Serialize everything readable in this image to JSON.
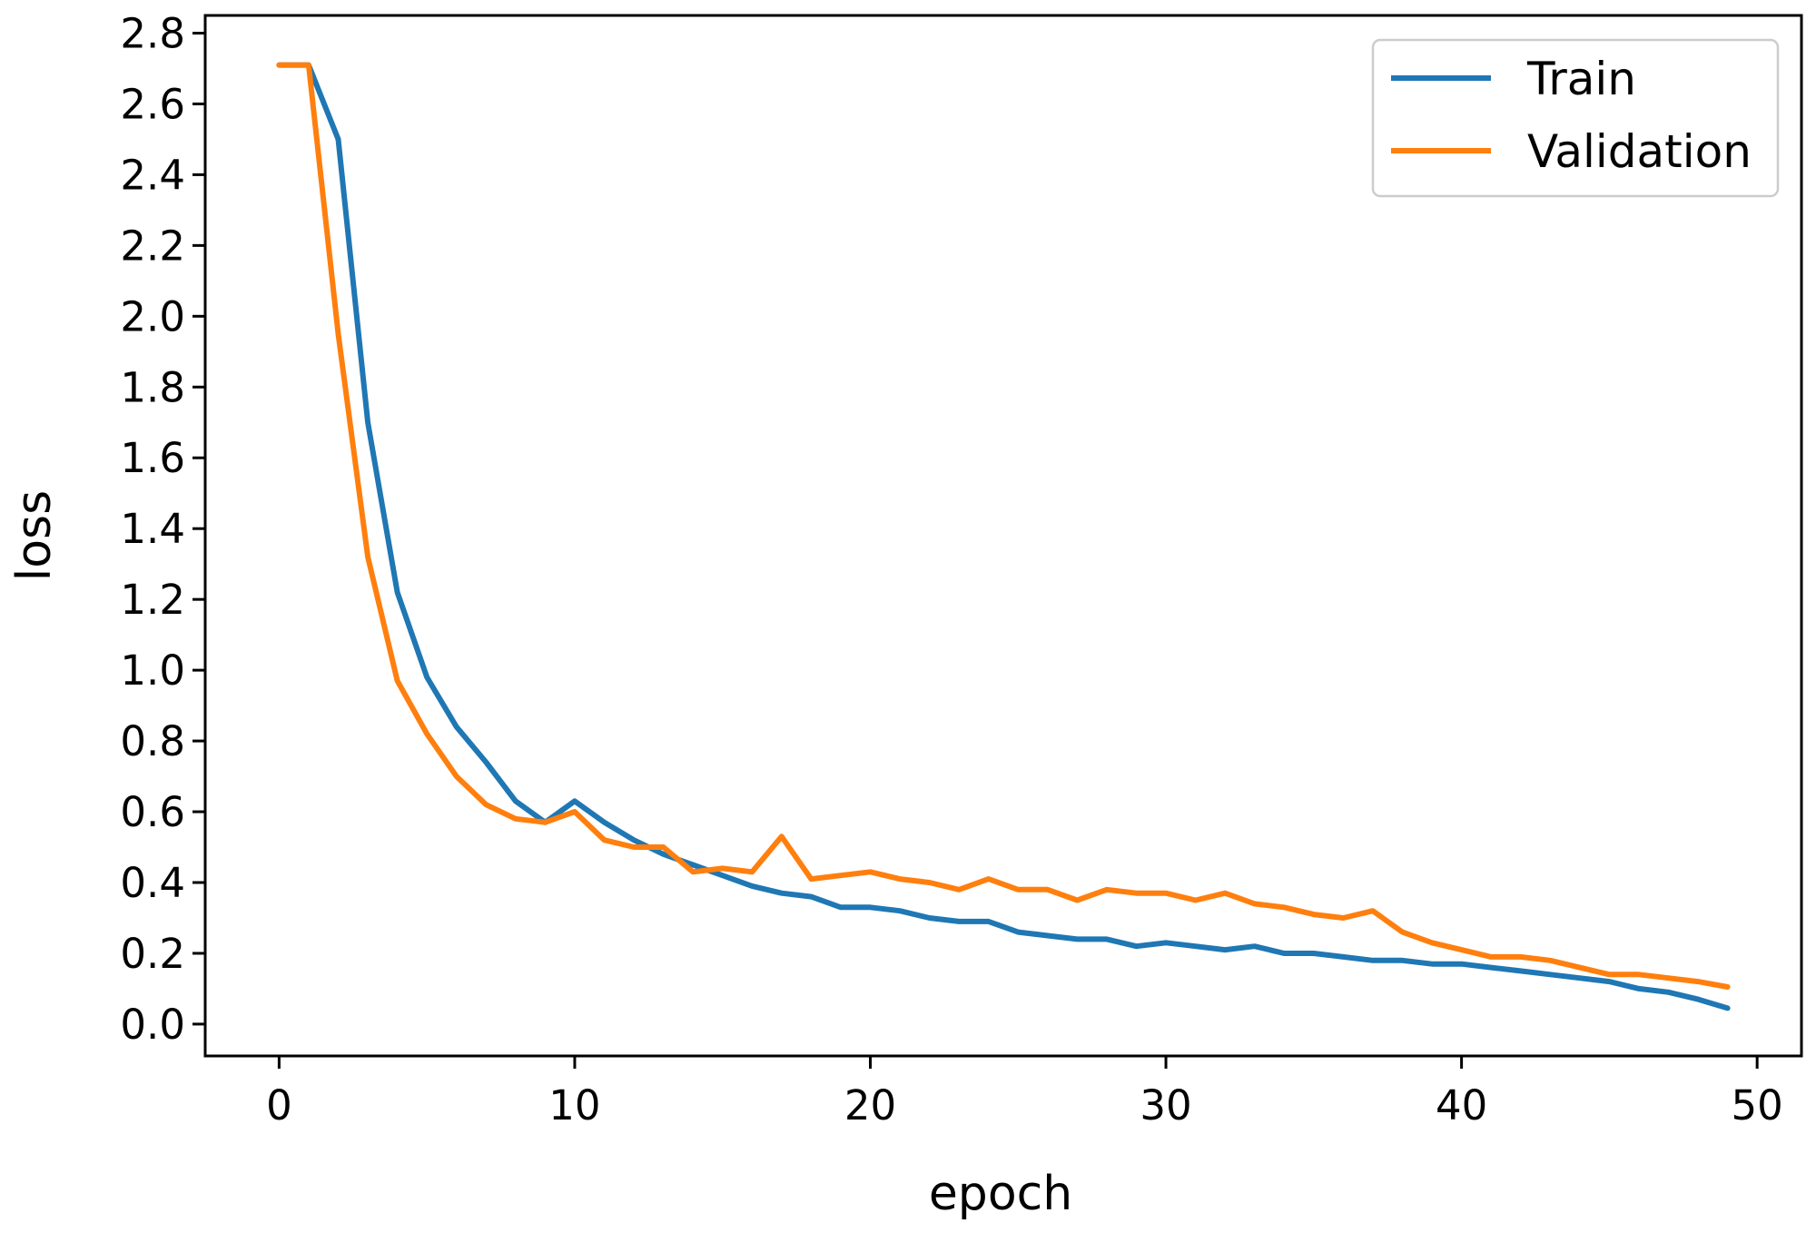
{
  "chart_data": {
    "type": "line",
    "xlabel": "epoch",
    "ylabel": "loss",
    "xlim": [
      -2.5,
      51.5
    ],
    "ylim": [
      -0.09,
      2.85
    ],
    "xticks": [
      0,
      10,
      20,
      30,
      40,
      50
    ],
    "yticks": [
      0.0,
      0.2,
      0.4,
      0.6,
      0.8,
      1.0,
      1.2,
      1.4,
      1.6,
      1.8,
      2.0,
      2.2,
      2.4,
      2.6,
      2.8
    ],
    "grid": false,
    "legend_position": "top-right",
    "x": [
      0,
      1,
      2,
      3,
      4,
      5,
      6,
      7,
      8,
      9,
      10,
      11,
      12,
      13,
      14,
      15,
      16,
      17,
      18,
      19,
      20,
      21,
      22,
      23,
      24,
      25,
      26,
      27,
      28,
      29,
      30,
      31,
      32,
      33,
      34,
      35,
      36,
      37,
      38,
      39,
      40,
      41,
      42,
      43,
      44,
      45,
      46,
      47,
      48,
      49
    ],
    "series": [
      {
        "name": "Train",
        "color": "#1f77b4",
        "values": [
          2.71,
          2.71,
          2.5,
          1.7,
          1.22,
          0.98,
          0.84,
          0.74,
          0.63,
          0.57,
          0.63,
          0.57,
          0.52,
          0.48,
          0.45,
          0.42,
          0.39,
          0.37,
          0.36,
          0.33,
          0.33,
          0.32,
          0.3,
          0.29,
          0.29,
          0.26,
          0.25,
          0.24,
          0.24,
          0.22,
          0.23,
          0.22,
          0.21,
          0.22,
          0.2,
          0.2,
          0.19,
          0.18,
          0.18,
          0.17,
          0.17,
          0.16,
          0.15,
          0.14,
          0.13,
          0.12,
          0.1,
          0.09,
          0.07,
          0.045
        ]
      },
      {
        "name": "Validation",
        "color": "#ff7f0e",
        "values": [
          2.71,
          2.71,
          1.95,
          1.32,
          0.97,
          0.82,
          0.7,
          0.62,
          0.58,
          0.57,
          0.6,
          0.52,
          0.5,
          0.5,
          0.43,
          0.44,
          0.43,
          0.53,
          0.41,
          0.42,
          0.43,
          0.41,
          0.4,
          0.38,
          0.41,
          0.38,
          0.38,
          0.35,
          0.38,
          0.37,
          0.37,
          0.35,
          0.37,
          0.34,
          0.33,
          0.31,
          0.3,
          0.32,
          0.26,
          0.23,
          0.21,
          0.19,
          0.19,
          0.18,
          0.16,
          0.14,
          0.14,
          0.13,
          0.12,
          0.105
        ]
      }
    ]
  }
}
